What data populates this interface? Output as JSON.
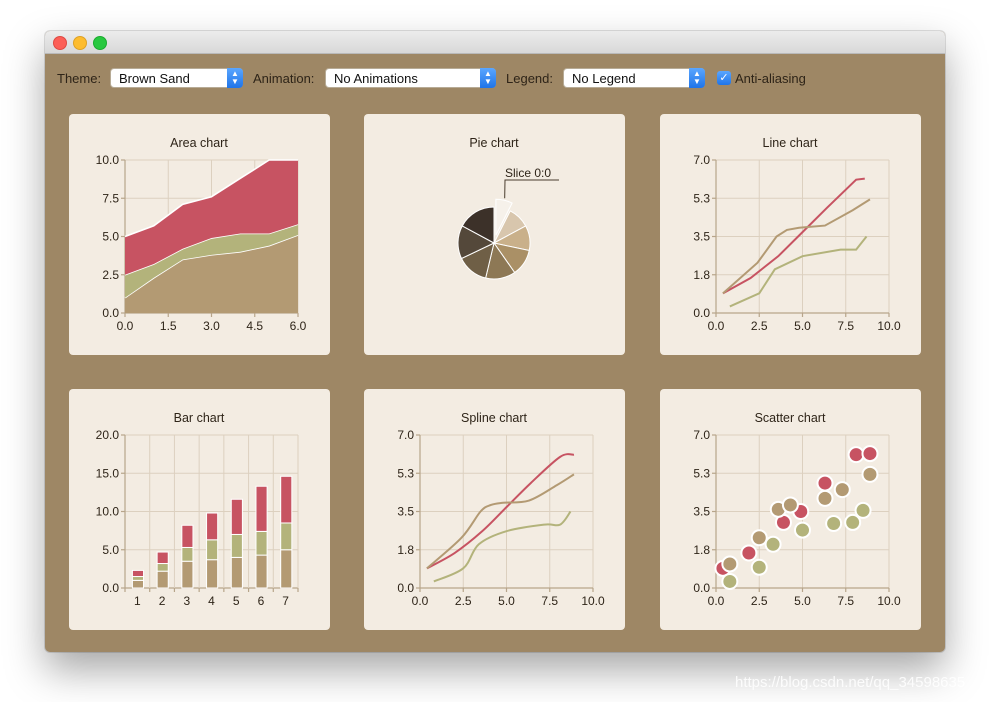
{
  "window": {
    "title": ""
  },
  "toolbar": {
    "theme_label": "Theme:",
    "theme_value": "Brown Sand",
    "animation_label": "Animation:",
    "animation_value": "No Animations",
    "legend_label": "Legend:",
    "legend_value": "No Legend",
    "antialias_label": "Anti-aliasing",
    "antialias_checked": true
  },
  "colors": {
    "window_bg": "#9e8765",
    "card_bg": "#f3ece2",
    "red": "#c75362",
    "green": "#b3b37b",
    "tan": "#b39a73"
  },
  "watermark": "https://blog.csdn.net/qq_34598635",
  "chart_data": [
    {
      "type": "area",
      "title": "Area chart",
      "x": [
        0,
        1,
        2,
        3,
        4,
        5,
        6
      ],
      "xticks": [
        "0.0",
        "1.5",
        "3.0",
        "4.5",
        "6.0"
      ],
      "yticks": [
        "0.0",
        "2.5",
        "5.0",
        "7.5",
        "10.0"
      ],
      "xlim": [
        0,
        6
      ],
      "ylim": [
        0,
        10
      ],
      "series": [
        {
          "values": [
            1.0,
            2.3,
            3.5,
            3.8,
            4.0,
            4.4,
            5.1
          ]
        },
        {
          "values": [
            2.5,
            3.2,
            4.2,
            4.9,
            5.2,
            5.2,
            5.8
          ]
        },
        {
          "values": [
            5.0,
            5.7,
            7.1,
            7.6,
            8.8,
            10.0,
            10.0
          ]
        }
      ]
    },
    {
      "type": "pie",
      "title": "Pie chart",
      "slice_label": "Slice 0:0",
      "slices": [
        1.0,
        1.3,
        1.5,
        1.6,
        1.8,
        1.9,
        2.0,
        2.3
      ]
    },
    {
      "type": "line",
      "title": "Line chart",
      "xticks": [
        "0.0",
        "2.5",
        "5.0",
        "7.5",
        "10.0"
      ],
      "yticks": [
        "0.0",
        "1.8",
        "3.5",
        "5.3",
        "7.0"
      ],
      "xlim": [
        0,
        10
      ],
      "ylim": [
        0,
        7
      ],
      "series": [
        {
          "points": [
            [
              0.4,
              0.9
            ],
            [
              2.0,
              1.6
            ],
            [
              3.6,
              2.6
            ],
            [
              5.0,
              3.7
            ],
            [
              6.4,
              4.8
            ],
            [
              8.1,
              6.1
            ],
            [
              8.6,
              6.15
            ]
          ]
        },
        {
          "points": [
            [
              0.4,
              0.9
            ],
            [
              2.4,
              2.3
            ],
            [
              3.5,
              3.5
            ],
            [
              4.1,
              3.8
            ],
            [
              4.8,
              3.9
            ],
            [
              6.3,
              4.0
            ],
            [
              7.9,
              4.7
            ],
            [
              8.9,
              5.2
            ]
          ]
        },
        {
          "points": [
            [
              0.8,
              0.3
            ],
            [
              2.5,
              0.9
            ],
            [
              3.4,
              2.0
            ],
            [
              5.0,
              2.6
            ],
            [
              7.2,
              2.9
            ],
            [
              8.1,
              2.9
            ],
            [
              8.7,
              3.5
            ]
          ]
        }
      ]
    },
    {
      "type": "bar",
      "title": "Bar chart",
      "categories": [
        "1",
        "2",
        "3",
        "4",
        "5",
        "6",
        "7"
      ],
      "yticks": [
        "0.0",
        "5.0",
        "10.0",
        "15.0",
        "20.0"
      ],
      "ylim": [
        0,
        20
      ],
      "series": [
        {
          "values": [
            1.0,
            2.2,
            3.5,
            3.7,
            4.0,
            4.3,
            5.0
          ]
        },
        {
          "values": [
            0.5,
            1.0,
            1.8,
            2.6,
            3.0,
            3.1,
            3.5
          ]
        },
        {
          "values": [
            0.8,
            1.5,
            2.9,
            3.5,
            4.6,
            5.9,
            6.1
          ]
        }
      ]
    },
    {
      "type": "line",
      "title": "Spline chart",
      "xticks": [
        "0.0",
        "2.5",
        "5.0",
        "7.5",
        "10.0"
      ],
      "yticks": [
        "0.0",
        "1.8",
        "3.5",
        "5.3",
        "7.0"
      ],
      "xlim": [
        0,
        10
      ],
      "ylim": [
        0,
        7
      ],
      "series": [
        {
          "points": [
            [
              0.4,
              0.9
            ],
            [
              2.0,
              1.6
            ],
            [
              3.6,
              2.6
            ],
            [
              5.0,
              3.7
            ],
            [
              6.4,
              4.8
            ],
            [
              8.1,
              6.0
            ],
            [
              8.9,
              6.1
            ]
          ]
        },
        {
          "points": [
            [
              0.4,
              0.9
            ],
            [
              2.4,
              2.3
            ],
            [
              3.5,
              3.5
            ],
            [
              4.1,
              3.8
            ],
            [
              4.8,
              3.9
            ],
            [
              6.3,
              4.0
            ],
            [
              7.9,
              4.7
            ],
            [
              8.9,
              5.2
            ]
          ]
        },
        {
          "points": [
            [
              0.8,
              0.3
            ],
            [
              2.5,
              0.9
            ],
            [
              3.4,
              2.0
            ],
            [
              5.0,
              2.6
            ],
            [
              7.2,
              2.9
            ],
            [
              8.1,
              2.9
            ],
            [
              8.7,
              3.5
            ]
          ]
        }
      ]
    },
    {
      "type": "scatter",
      "title": "Scatter chart",
      "xticks": [
        "0.0",
        "2.5",
        "5.0",
        "7.5",
        "10.0"
      ],
      "yticks": [
        "0.0",
        "1.8",
        "3.5",
        "5.3",
        "7.0"
      ],
      "xlim": [
        0,
        10
      ],
      "ylim": [
        0,
        7
      ],
      "series": [
        {
          "points": [
            [
              0.4,
              0.9
            ],
            [
              1.9,
              1.6
            ],
            [
              3.9,
              3.0
            ],
            [
              4.9,
              3.5
            ],
            [
              6.3,
              4.8
            ],
            [
              8.1,
              6.1
            ],
            [
              8.9,
              6.15
            ]
          ]
        },
        {
          "points": [
            [
              0.8,
              1.1
            ],
            [
              2.5,
              2.3
            ],
            [
              3.6,
              3.6
            ],
            [
              4.3,
              3.8
            ],
            [
              6.3,
              4.1
            ],
            [
              7.3,
              4.5
            ],
            [
              8.9,
              5.2
            ]
          ]
        },
        {
          "points": [
            [
              0.8,
              0.3
            ],
            [
              2.5,
              0.95
            ],
            [
              3.3,
              2.0
            ],
            [
              5.0,
              2.65
            ],
            [
              6.8,
              2.95
            ],
            [
              7.9,
              3.0
            ],
            [
              8.5,
              3.55
            ]
          ]
        }
      ]
    }
  ]
}
